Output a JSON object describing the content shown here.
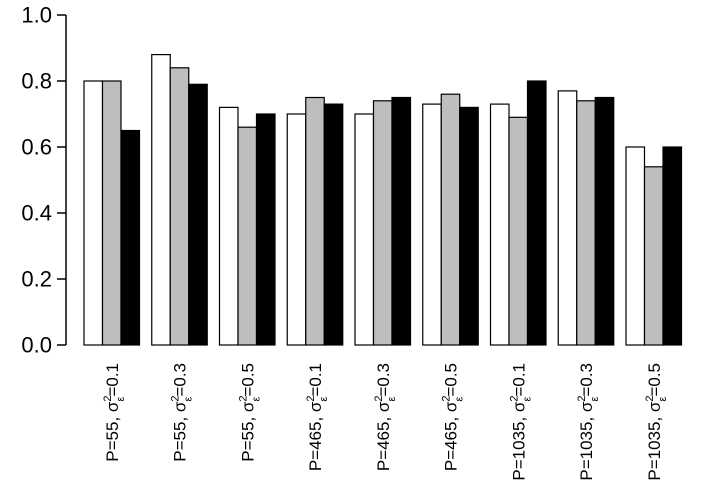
{
  "chart_data": {
    "type": "bar",
    "title": "",
    "xlabel": "",
    "ylabel": "",
    "ylim": [
      0,
      1.0
    ],
    "yticks": [
      "0.0",
      "0.2",
      "0.4",
      "0.6",
      "0.8",
      "1.0"
    ],
    "categories": [
      {
        "main": "P=55, σ",
        "sup": "2",
        "sub": "ε",
        "rest": "=0.1"
      },
      {
        "main": "P=55, σ",
        "sup": "2",
        "sub": "ε",
        "rest": "=0.3"
      },
      {
        "main": "P=55, σ",
        "sup": "2",
        "sub": "ε",
        "rest": "=0.5"
      },
      {
        "main": "P=465, σ",
        "sup": "2",
        "sub": "ε",
        "rest": "=0.1"
      },
      {
        "main": "P=465, σ",
        "sup": "2",
        "sub": "ε",
        "rest": "=0.3"
      },
      {
        "main": "P=465, σ",
        "sup": "2",
        "sub": "ε",
        "rest": "=0.5"
      },
      {
        "main": "P=1035, σ",
        "sup": "2",
        "sub": "ε",
        "rest": "=0.1"
      },
      {
        "main": "P=1035, σ",
        "sup": "2",
        "sub": "ε",
        "rest": "=0.3"
      },
      {
        "main": "P=1035, σ",
        "sup": "2",
        "sub": "ε",
        "rest": "=0.5"
      }
    ],
    "series": [
      {
        "color": "#ffffff",
        "values": [
          0.8,
          0.88,
          0.72,
          0.7,
          0.7,
          0.73,
          0.73,
          0.77,
          0.6
        ]
      },
      {
        "color": "#bebebe",
        "values": [
          0.8,
          0.84,
          0.66,
          0.75,
          0.74,
          0.76,
          0.69,
          0.74,
          0.54
        ]
      },
      {
        "color": "#000000",
        "values": [
          0.65,
          0.79,
          0.7,
          0.73,
          0.75,
          0.72,
          0.8,
          0.75,
          0.6
        ]
      }
    ],
    "grid": false,
    "legend": "none"
  }
}
